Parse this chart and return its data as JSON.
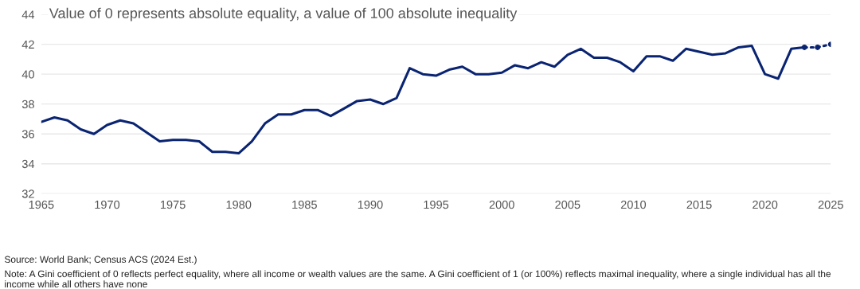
{
  "chart_data": {
    "type": "line",
    "title": "Value of 0 represents absolute equality, a value of 100 absolute inequality",
    "series": [
      {
        "color": "#0a2472",
        "line_style": "solid",
        "x": [
          1965,
          1966,
          1967,
          1968,
          1969,
          1970,
          1971,
          1972,
          1973,
          1974,
          1975,
          1976,
          1977,
          1978,
          1979,
          1980,
          1981,
          1982,
          1983,
          1984,
          1985,
          1986,
          1987,
          1988,
          1989,
          1990,
          1991,
          1992,
          1993,
          1994,
          1995,
          1996,
          1997,
          1998,
          1999,
          2000,
          2001,
          2002,
          2003,
          2004,
          2005,
          2006,
          2007,
          2008,
          2009,
          2010,
          2011,
          2012,
          2013,
          2014,
          2015,
          2016,
          2017,
          2018,
          2019,
          2020,
          2021,
          2022,
          2023
        ],
        "values": [
          36.8,
          37.1,
          36.9,
          36.3,
          36.0,
          36.6,
          36.9,
          36.7,
          36.1,
          35.5,
          35.6,
          35.6,
          35.5,
          34.8,
          34.8,
          34.7,
          35.5,
          36.7,
          37.3,
          37.3,
          37.6,
          37.6,
          37.2,
          37.7,
          38.2,
          38.3,
          38.0,
          38.4,
          40.4,
          40.0,
          39.9,
          40.3,
          40.5,
          40.0,
          40.0,
          40.1,
          40.6,
          40.4,
          40.8,
          40.5,
          41.3,
          41.7,
          41.1,
          41.1,
          40.8,
          40.2,
          41.2,
          41.2,
          40.9,
          41.7,
          41.5,
          41.3,
          41.4,
          41.8,
          41.9,
          40.0,
          39.7,
          41.7,
          41.8
        ]
      },
      {
        "color": "#0a2472",
        "line_style": "dotted",
        "marker": "circle",
        "x": [
          2023,
          2024,
          2025
        ],
        "values": [
          41.8,
          41.8,
          42.0
        ]
      }
    ],
    "xlim": [
      1965,
      2025
    ],
    "xticks": [
      1965,
      1970,
      1975,
      1980,
      1985,
      1990,
      1995,
      2000,
      2005,
      2010,
      2015,
      2020,
      2025
    ],
    "ylim": [
      32,
      44
    ],
    "yticks": [
      32,
      34,
      36,
      38,
      40,
      42,
      44
    ],
    "grid": "y",
    "legend": false,
    "annotations": [
      "Source: World Bank; Census ACS (2024 Est.)",
      "Note: A Gini coefficient of 0 reflects perfect equality, where all income or wealth values are the same. A Gini coefficient of 1 (or 100%) reflects maximal inequality, where a single individual has all the income while all others have none"
    ]
  }
}
